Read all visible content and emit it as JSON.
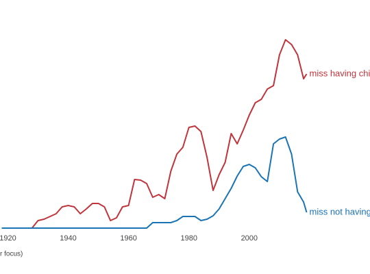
{
  "chart_data": {
    "type": "line",
    "x": [
      1918,
      1920,
      1922,
      1924,
      1926,
      1928,
      1930,
      1932,
      1934,
      1936,
      1938,
      1940,
      1942,
      1944,
      1946,
      1948,
      1950,
      1952,
      1954,
      1956,
      1958,
      1960,
      1962,
      1964,
      1966,
      1968,
      1970,
      1972,
      1974,
      1976,
      1978,
      1980,
      1982,
      1984,
      1986,
      1988,
      1990,
      1992,
      1994,
      1996,
      1998,
      2000,
      2002,
      2004,
      2006,
      2008,
      2010,
      2012,
      2014,
      2016,
      2018,
      2019
    ],
    "series": [
      {
        "name": "miss having children",
        "color": "#c0343b",
        "values": [
          0,
          0,
          0,
          0,
          0,
          0,
          11,
          13,
          17,
          21,
          31,
          33,
          31,
          21,
          28,
          36,
          36,
          31,
          11,
          15,
          31,
          33,
          71,
          70,
          65,
          45,
          49,
          43,
          83,
          108,
          118,
          147,
          149,
          141,
          103,
          55,
          78,
          96,
          138,
          123,
          143,
          165,
          183,
          188,
          203,
          208,
          253,
          275,
          268,
          253,
          218,
          225
        ]
      },
      {
        "name": "miss not having children",
        "color": "#1a74b4",
        "values": [
          0,
          0,
          0,
          0,
          0,
          0,
          0,
          0,
          0,
          0,
          0,
          0,
          0,
          0,
          0,
          0,
          0,
          0,
          0,
          0,
          0,
          0,
          0,
          0,
          0,
          8,
          8,
          8,
          8,
          11,
          17,
          17,
          17,
          11,
          13,
          18,
          28,
          43,
          58,
          76,
          90,
          93,
          88,
          75,
          68,
          123,
          130,
          133,
          108,
          53,
          38,
          23
        ]
      }
    ],
    "xlim": [
      1917.4,
      2040
    ],
    "xticks": [
      1920,
      1940,
      1960,
      1980,
      2000
    ],
    "ylim": [
      0,
      333
    ],
    "footnote": "r focus)"
  }
}
